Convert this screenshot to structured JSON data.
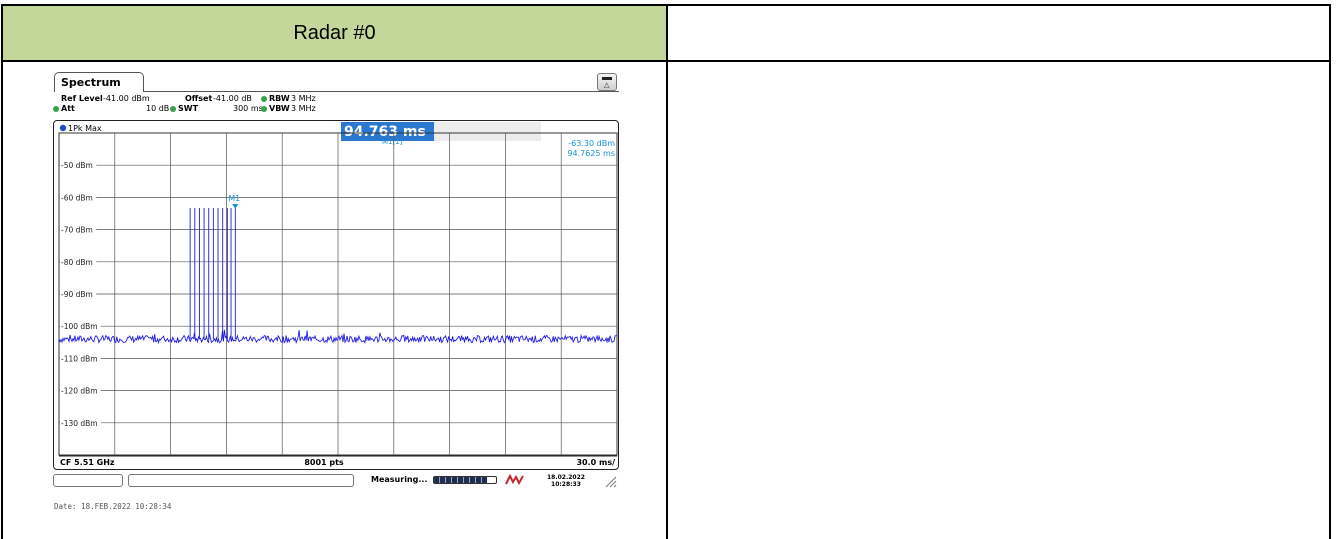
{
  "table": {
    "header_left": "Radar #0",
    "header_right": ""
  },
  "analyzer": {
    "tab_label": "Spectrum",
    "settings": {
      "ref_level_label": "Ref Level",
      "ref_level_value": "-41.00 dBm",
      "offset_label": "Offset",
      "offset_value": "-41.00 dB",
      "rbw_label": "RBW",
      "rbw_value": "3 MHz",
      "att_label": "Att",
      "att_value": "10 dB",
      "swt_label": "SWT",
      "swt_value": "300 ms",
      "vbw_label": "VBW",
      "vbw_value": "3 MHz"
    },
    "trace_label": "1Pk Max",
    "marker_readout_big": "94.763 ms",
    "marker_name_small": "M1[1]",
    "marker_level": "-63.30 dBm",
    "marker_time": "94.7625 ms",
    "marker_label": "M1",
    "bottom_left": "CF 5.51 GHz",
    "bottom_center": "8001 pts",
    "bottom_right": "30.0 ms/",
    "status": "Measuring...",
    "stamp_date": "18.02.2022",
    "stamp_time": "10:28:33",
    "date_line": "Date: 18.FEB.2022  10:28:34"
  },
  "colors": {
    "header_fill": "#c4d79b",
    "trace": "#1f1fe0",
    "marker": "#1b8fd6",
    "readout_highlight": "#2a78d0",
    "led": "#3aa04a"
  },
  "chart_data": {
    "type": "line",
    "xlabel": "",
    "ylabel": "",
    "xlim": [
      0,
      300
    ],
    "ylim": [
      -140,
      -40
    ],
    "x_unit": "ms",
    "y_unit": "dBm",
    "yticks": [
      -50,
      -60,
      -70,
      -80,
      -90,
      -100,
      -110,
      -120,
      -130
    ],
    "ytick_labels": [
      "-50 dBm",
      "-60 dBm",
      "-70 dBm",
      "-80 dBm",
      "-90 dBm",
      "-100 dBm",
      "-110 dBm",
      "-120 dBm",
      "-130 dBm"
    ],
    "x_divisions": 10,
    "grid": true,
    "noise_floor_dbm": -104,
    "series": [
      {
        "name": "1Pk Max",
        "pulses": {
          "times_ms": [
            70.5,
            73.0,
            75.5,
            78.0,
            80.5,
            83.0,
            85.5,
            88.0,
            90.5,
            92.5,
            94.8
          ],
          "peak_dbm": -63.3
        }
      }
    ],
    "marker": {
      "name": "M1",
      "x_ms": 94.7625,
      "y_dbm": -63.3
    }
  }
}
